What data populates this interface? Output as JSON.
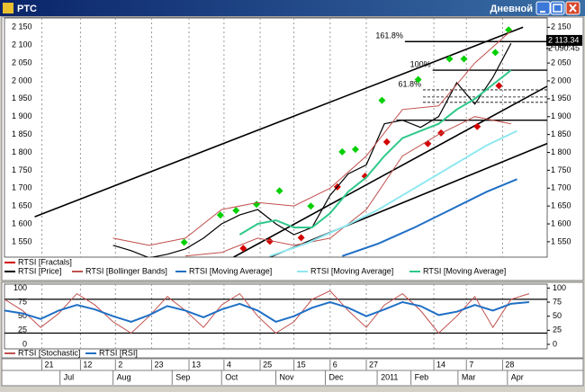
{
  "window": {
    "title": "PTC",
    "mode": "Дневной"
  },
  "chart_data": [
    {
      "type": "price",
      "xlim": [
        0,
        45
      ],
      "ylim": [
        1507,
        2176
      ],
      "yticks": [
        {
          "value": 1550,
          "label": "1 550"
        },
        {
          "value": 1600,
          "label": "1 600"
        },
        {
          "value": 1650,
          "label": "1 650"
        },
        {
          "value": 1700,
          "label": "1 700"
        },
        {
          "value": 1750,
          "label": "1 750"
        },
        {
          "value": 1800,
          "label": "1 800"
        },
        {
          "value": 1850,
          "label": "1 850"
        },
        {
          "value": 1900,
          "label": "1 900"
        },
        {
          "value": 1950,
          "label": "1 950"
        },
        {
          "value": 2000,
          "label": "2 000"
        },
        {
          "value": 2050,
          "label": "2 050"
        },
        {
          "value": 2100,
          "label": "2 100"
        },
        {
          "value": 2150,
          "label": "2 150"
        }
      ],
      "grid": true,
      "price_tags": [
        {
          "value": 2113.34,
          "label": "2 113.34",
          "boxed": true
        },
        {
          "value": 2090.45,
          "label": "2 090.45",
          "boxed": false
        }
      ],
      "fib_levels": [
        {
          "value": 2110,
          "label": "161.8%",
          "x": [
            33.2,
            45
          ]
        },
        {
          "value": 2030,
          "label": "100%",
          "x": [
            35.5,
            45
          ]
        },
        {
          "value": 1975,
          "label": "61.8%",
          "x": [
            34.7,
            45
          ]
        },
        {
          "value": 1955,
          "x": [
            34.7,
            45
          ]
        },
        {
          "value": 1940,
          "x": [
            34.7,
            45
          ]
        },
        {
          "value": 1890,
          "x": [
            32.5,
            45
          ]
        }
      ],
      "trendlines": [
        {
          "x": [
            2.5,
            43
          ],
          "values": [
            1620,
            2150
          ]
        },
        {
          "x": [
            19,
            45
          ],
          "values": [
            1507,
            1985
          ]
        },
        {
          "x": [
            22,
            45
          ],
          "values": [
            1507,
            1825
          ]
        }
      ],
      "series": [
        {
          "name": "RTSI [Fractals]",
          "color": "#d40000",
          "up_color": "#00d000",
          "up": {
            "x": [
              14.9,
              17.9,
              19.2,
              20.9,
              22.8,
              25.4,
              28,
              29.1,
              31.3,
              34.3,
              36.9,
              38.1,
              40.7,
              41.8
            ],
            "values": [
              1531,
              1607,
              1620,
              1637,
              1675,
              1632,
              1784,
              1791,
              1928,
              1986,
              2044,
              2044,
              2062,
              2125
            ]
          },
          "down": {
            "x": [
              19.8,
              22,
              24.6,
              27.6,
              29.9,
              31.7,
              35.1,
              36.2,
              39.2,
              41
            ],
            "values": [
              1549,
              1569,
              1579,
              1721,
              1751,
              1847,
              1842,
              1872,
              1890,
              2004
            ]
          }
        },
        {
          "name": "RTSI [Price]",
          "color": "#000000",
          "x": [
            9,
            10.5,
            12,
            13.5,
            15,
            16.5,
            18,
            19.5,
            21,
            22.5,
            24,
            25.5,
            27,
            28.5,
            30,
            31.5,
            33,
            34.5,
            36,
            37.5,
            39,
            40.5,
            42
          ],
          "values": [
            1540,
            1525,
            1505,
            1515,
            1530,
            1560,
            1600,
            1625,
            1640,
            1600,
            1570,
            1590,
            1680,
            1740,
            1765,
            1880,
            1890,
            1870,
            1900,
            1995,
            1935,
            2010,
            2105
          ]
        },
        {
          "name": "RTSI [Bollinger Bands]",
          "color": "#c0504d",
          "upper": {
            "x": [
              9,
              12,
              15,
              18,
              21,
              24,
              27,
              30,
              33,
              36,
              39,
              42
            ],
            "values": [
              1560,
              1540,
              1560,
              1640,
              1660,
              1650,
              1700,
              1790,
              1920,
              1930,
              2050,
              2140
            ]
          },
          "lower": {
            "x": [
              15,
              18,
              21,
              24,
              27,
              30,
              33,
              36,
              39,
              42
            ],
            "values": [
              1510,
              1520,
              1560,
              1540,
              1560,
              1640,
              1790,
              1850,
              1900,
              1880
            ]
          }
        },
        {
          "name": "RTSI [Moving Average]",
          "color": "#1f6fc5",
          "x": [
            28,
            31,
            34,
            37,
            40,
            42.5
          ],
          "values": [
            1510,
            1545,
            1590,
            1640,
            1690,
            1725
          ]
        },
        {
          "name": "RTSI [Moving Average]",
          "color": "#8fe8f0",
          "x": [
            22,
            25,
            28,
            31,
            34,
            37,
            40,
            42.5
          ],
          "values": [
            1510,
            1545,
            1590,
            1640,
            1700,
            1760,
            1820,
            1860
          ]
        },
        {
          "name": "RTSI [Moving Average]",
          "color": "#2fc88a",
          "x": [
            19.5,
            21,
            22.5,
            24,
            25.5,
            27,
            28.5,
            30,
            31.5,
            33,
            34.5,
            36,
            37.5,
            39,
            40.5,
            42
          ],
          "values": [
            1570,
            1600,
            1610,
            1590,
            1590,
            1630,
            1690,
            1730,
            1790,
            1840,
            1860,
            1880,
            1920,
            1950,
            1990,
            2030
          ]
        }
      ]
    },
    {
      "type": "oscillator",
      "xlim": [
        0,
        45
      ],
      "ylim": [
        -8,
        107
      ],
      "yticks": [
        0,
        25,
        50,
        75,
        100
      ],
      "levels": [
        80,
        20
      ],
      "xticks": [
        {
          "value": 3.1,
          "label": "21"
        },
        {
          "value": 6.3,
          "label": "12"
        },
        {
          "value": 9.2,
          "label": "2"
        },
        {
          "value": 12.2,
          "label": "23"
        },
        {
          "value": 15.3,
          "label": "13"
        },
        {
          "value": 18.2,
          "label": "4"
        },
        {
          "value": 21.2,
          "label": "25"
        },
        {
          "value": 24,
          "label": "15"
        },
        {
          "value": 27,
          "label": "6"
        },
        {
          "value": 30,
          "label": "27"
        },
        {
          "value": 35.6,
          "label": "14"
        },
        {
          "value": 38.3,
          "label": "7"
        },
        {
          "value": 41.3,
          "label": "28"
        }
      ],
      "month_labels": [
        {
          "value": 4.9,
          "label": "Jul"
        },
        {
          "value": 9.3,
          "label": "Aug"
        },
        {
          "value": 14.2,
          "label": "Sep"
        },
        {
          "value": 18.3,
          "label": "Oct"
        },
        {
          "value": 22.8,
          "label": "Nov"
        },
        {
          "value": 26.9,
          "label": "Dec"
        },
        {
          "value": 31.2,
          "label": "2011"
        },
        {
          "value": 34,
          "label": "Feb"
        },
        {
          "value": 37.9,
          "label": "Mar"
        },
        {
          "value": 42,
          "label": "Apr"
        }
      ],
      "series": [
        {
          "name": "RTSI [Stochastic]",
          "color": "#c0504d",
          "x": [
            0,
            1.5,
            3,
            4.5,
            6,
            7.5,
            9,
            10.5,
            12,
            13.5,
            15,
            16.5,
            18,
            19.5,
            21,
            22.5,
            24,
            25.5,
            27,
            28.5,
            30,
            31.5,
            33,
            34.5,
            36,
            37.5,
            39,
            40.5,
            42,
            43.5
          ],
          "values": [
            80,
            60,
            30,
            55,
            90,
            70,
            40,
            20,
            50,
            85,
            60,
            30,
            70,
            90,
            50,
            20,
            40,
            80,
            95,
            60,
            30,
            70,
            90,
            60,
            20,
            50,
            85,
            30,
            80,
            90
          ]
        },
        {
          "name": "RTSI [RSI]",
          "color": "#1f6fc5",
          "x": [
            0,
            1.5,
            3,
            4.5,
            6,
            7.5,
            9,
            10.5,
            12,
            13.5,
            15,
            16.5,
            18,
            19.5,
            21,
            22.5,
            24,
            25.5,
            27,
            28.5,
            30,
            31.5,
            33,
            34.5,
            36,
            37.5,
            39,
            40.5,
            42,
            43.5
          ],
          "values": [
            60,
            55,
            45,
            60,
            70,
            62,
            50,
            40,
            52,
            68,
            60,
            48,
            62,
            72,
            60,
            40,
            50,
            65,
            75,
            65,
            50,
            62,
            75,
            68,
            52,
            58,
            70,
            60,
            72,
            75
          ]
        }
      ]
    }
  ]
}
